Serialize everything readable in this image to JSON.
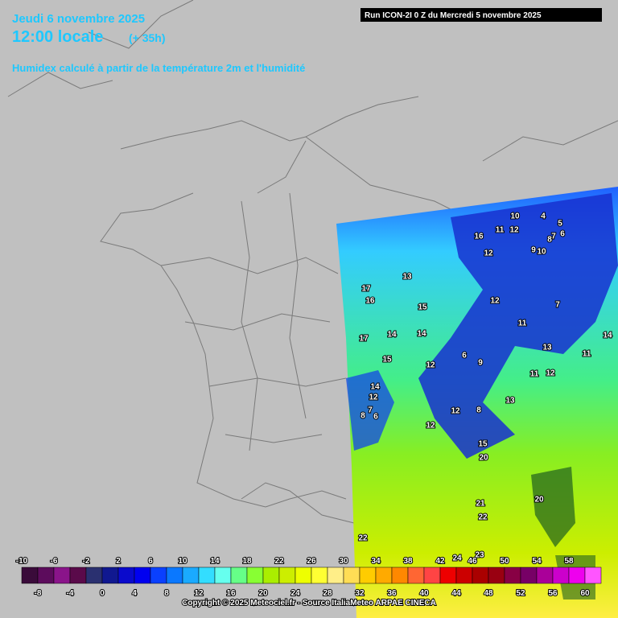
{
  "header": {
    "date": "Jeudi 6 novembre 2025",
    "time": "12:00 locale",
    "lead": "(+ 35h)",
    "description": "Humidex calculé à partir de la température 2m et l'humidité",
    "run": "Run ICON-2I 0 Z du Mercredi 5 novembre 2025"
  },
  "map_labels": [
    10,
    4,
    16,
    11,
    12,
    5,
    8,
    7,
    6,
    12,
    9,
    10,
    13,
    17,
    16,
    15,
    12,
    7,
    14,
    14,
    17,
    11,
    14,
    13,
    11,
    15,
    12,
    6,
    9,
    11,
    12,
    14,
    12,
    13,
    8,
    7,
    6,
    12,
    12,
    8,
    15,
    20,
    21,
    22,
    20,
    22,
    24,
    23
  ],
  "legend": {
    "top_labels": [
      -10,
      -6,
      -2,
      2,
      6,
      10,
      14,
      18,
      22,
      26,
      30,
      34,
      38,
      42,
      46,
      50,
      54,
      58
    ],
    "bottom_labels": [
      -8,
      -4,
      0,
      4,
      8,
      12,
      16,
      20,
      24,
      28,
      32,
      36,
      40,
      44,
      48,
      52,
      56,
      60
    ],
    "colors": [
      "#3a0b3a",
      "#5c0c5c",
      "#8a148a",
      "#5a0a4a",
      "#2a3070",
      "#101890",
      "#0a0acc",
      "#0000f0",
      "#0a40ff",
      "#0a78ff",
      "#1aaaff",
      "#33ddff",
      "#66ffee",
      "#66ff88",
      "#88ff33",
      "#aaee00",
      "#ccee00",
      "#eeff00",
      "#ffff33",
      "#ffee88",
      "#ffdd55",
      "#ffcc00",
      "#ffaa00",
      "#ff8800",
      "#ff6633",
      "#ff4444",
      "#ee0000",
      "#cc0000",
      "#aa0000",
      "#990011",
      "#880044",
      "#770066",
      "#aa0099",
      "#cc00cc",
      "#ee00ee",
      "#ff55ff"
    ]
  },
  "footer": {
    "copyright": "Copyright © 2025 Meteociel.fr - Source ItaliaMeteo ARPAE CINECA"
  }
}
